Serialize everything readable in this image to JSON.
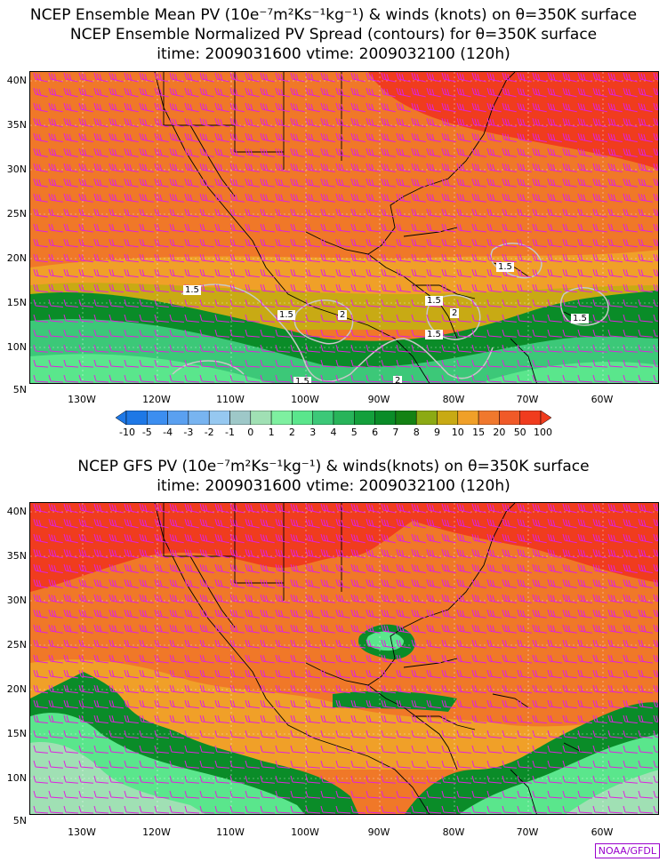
{
  "panel1": {
    "title_line1": "NCEP Ensemble Mean PV (10e⁻⁷m²Ks⁻¹kg⁻¹) & winds (knots) on θ=350K surface",
    "title_line2": "NCEP Ensemble Normalized PV Spread (contours) for θ=350K surface",
    "title_line3": "itime: 2009031600    vtime: 2009032100 (120h)",
    "contour_labels": [
      "1.5",
      "1.5",
      "2",
      "1.5",
      "2",
      "1.5",
      "1.5",
      "1.5",
      "2",
      "1.5"
    ]
  },
  "panel2": {
    "title_line1": "NCEP GFS PV (10e⁻⁷m²Ks⁻¹kg⁻¹) & winds(knots) on θ=350K surface",
    "title_line2": "itime: 2009031600    vtime: 2009032100 (120h)"
  },
  "lat_labels": [
    "40N",
    "35N",
    "30N",
    "25N",
    "20N",
    "15N",
    "10N",
    "5N"
  ],
  "lon_labels": [
    "130W",
    "120W",
    "110W",
    "100W",
    "90W",
    "80W",
    "70W",
    "60W"
  ],
  "colorbar": {
    "labels": [
      "-10",
      "-5",
      "-4",
      "-3",
      "-2",
      "-1",
      "0",
      "1",
      "2",
      "3",
      "4",
      "5",
      "6",
      "7",
      "8",
      "9",
      "10",
      "15",
      "20",
      "50",
      "100"
    ],
    "colors": [
      "#1e78e6",
      "#3c8ef0",
      "#5aa0f0",
      "#78b4f0",
      "#96c8f0",
      "#9ec8c8",
      "#a0e0b4",
      "#7ef0a0",
      "#5ae68c",
      "#3cc878",
      "#28b45a",
      "#14a03c",
      "#0a8c28",
      "#148214",
      "#8caa14",
      "#c8aa14",
      "#f0a028",
      "#f0782d",
      "#f05a28",
      "#f03c1e"
    ]
  },
  "credit": "NOAA/GFDL",
  "colors": {
    "wind_barbs": "#e020e0",
    "contours": "#c8c8c8",
    "coast": "#000000"
  }
}
